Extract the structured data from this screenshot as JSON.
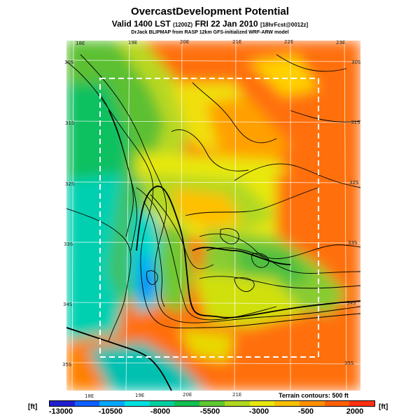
{
  "title": "OvercastDevelopment Potential",
  "valid": {
    "prefix": "Valid 1400 LST",
    "zulu": "(1200Z)",
    "date": "FRI 22 Jan 2010",
    "fcst": "[18hrFcst@0012z]"
  },
  "credit": "DrJack BLIPMAP from RASP 12km GFS-initialized WRF-ARW model",
  "terrain_note": "Terrain contours: 500 ft",
  "colorbar": {
    "unit_left": "[ft]",
    "unit_right": "[ft]",
    "ticks": [
      "-13000",
      "-10500",
      "-8000",
      "-5500",
      "-3000",
      "-500",
      "2000"
    ]
  },
  "map": {
    "top_lon_labels": [
      "18E",
      "19E",
      "20E",
      "21E",
      "22E",
      "23E"
    ],
    "bottom_lon_labels": [
      "18E",
      "19E",
      "20E",
      "21E"
    ],
    "left_lat_labels": [
      "30S",
      "31S",
      "32S",
      "33S",
      "34S",
      "35S"
    ],
    "right_lat_labels": [
      "30S",
      "31S",
      "32S",
      "33S",
      "34S",
      "35S"
    ]
  },
  "colors": {
    "scale": [
      "#2020d0",
      "#1060ff",
      "#00a8ff",
      "#00e0e0",
      "#00d0a0",
      "#10c050",
      "#60c830",
      "#b0d820",
      "#e8e810",
      "#f8c000",
      "#ff9000",
      "#ff6000",
      "#ff3010"
    ]
  }
}
